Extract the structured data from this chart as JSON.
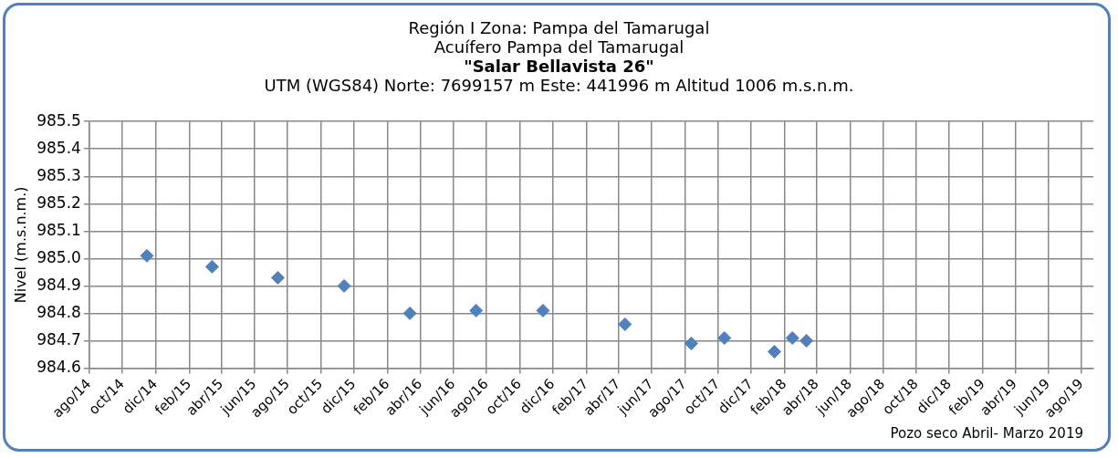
{
  "chart_data": {
    "type": "scatter",
    "title": "Región I Zona: Pampa del Tamarugal\nAcuífero Pampa del Tamarugal\n\"Salar Bellavista 26\"",
    "subtitle": "UTM (WGS84) Norte: 7699157 m Este: 441996 m Altitud 1006 m.s.n.m.",
    "ylabel": "Nivel (m.s.n.m.)",
    "x": [
      "2014-11-15",
      "2015-03-15",
      "2015-07-14",
      "2015-11-13",
      "2016-03-13",
      "2016-07-13",
      "2016-11-13",
      "2017-04-13",
      "2017-08-13",
      "2017-10-13",
      "2018-01-13",
      "2018-02-15",
      "2018-03-13"
    ],
    "series": [
      {
        "color": "#4f81bd",
        "values": [
          985.01,
          984.97,
          984.93,
          984.9,
          984.8,
          984.81,
          984.81,
          984.76,
          984.69,
          984.71,
          984.66,
          984.71,
          984.7
        ]
      }
    ],
    "marker": "diamond",
    "grid": true,
    "legend": false,
    "ylim": [
      984.6,
      985.5
    ],
    "yticks": [
      {
        "value": 984.6,
        "label": "984.6"
      },
      {
        "value": 984.7,
        "label": "984.7"
      },
      {
        "value": 984.8,
        "label": "984.8"
      },
      {
        "value": 984.9,
        "label": "984.9"
      },
      {
        "value": 985.0,
        "label": "985.0"
      },
      {
        "value": 985.1,
        "label": "985.1"
      },
      {
        "value": 985.2,
        "label": "985.2"
      },
      {
        "value": 985.3,
        "label": "985.3"
      },
      {
        "value": 985.4,
        "label": "985.4"
      },
      {
        "value": 985.5,
        "label": "985.5"
      }
    ],
    "xlim": [
      "2014-08-01",
      "2019-08-23"
    ],
    "xticks": [
      {
        "value": "2014-08-01",
        "label": "ago/14"
      },
      {
        "value": "2014-10-01",
        "label": "oct/14"
      },
      {
        "value": "2014-12-01",
        "label": "dic/14"
      },
      {
        "value": "2015-02-01",
        "label": "feb/15"
      },
      {
        "value": "2015-04-01",
        "label": "abr/15"
      },
      {
        "value": "2015-06-01",
        "label": "jun/15"
      },
      {
        "value": "2015-08-01",
        "label": "ago/15"
      },
      {
        "value": "2015-10-01",
        "label": "oct/15"
      },
      {
        "value": "2015-12-01",
        "label": "dic/15"
      },
      {
        "value": "2016-02-01",
        "label": "feb/16"
      },
      {
        "value": "2016-04-01",
        "label": "abr/16"
      },
      {
        "value": "2016-06-01",
        "label": "jun/16"
      },
      {
        "value": "2016-08-01",
        "label": "ago/16"
      },
      {
        "value": "2016-10-01",
        "label": "oct/16"
      },
      {
        "value": "2016-12-01",
        "label": "dic/16"
      },
      {
        "value": "2017-02-01",
        "label": "feb/17"
      },
      {
        "value": "2017-04-01",
        "label": "abr/17"
      },
      {
        "value": "2017-06-01",
        "label": "jun/17"
      },
      {
        "value": "2017-08-01",
        "label": "ago/17"
      },
      {
        "value": "2017-10-01",
        "label": "oct/17"
      },
      {
        "value": "2017-12-01",
        "label": "dic/17"
      },
      {
        "value": "2018-02-01",
        "label": "feb/18"
      },
      {
        "value": "2018-04-01",
        "label": "abr/18"
      },
      {
        "value": "2018-06-01",
        "label": "jun/18"
      },
      {
        "value": "2018-08-01",
        "label": "ago/18"
      },
      {
        "value": "2018-10-01",
        "label": "oct/18"
      },
      {
        "value": "2018-12-01",
        "label": "dic/18"
      },
      {
        "value": "2019-02-01",
        "label": "feb/19"
      },
      {
        "value": "2019-04-01",
        "label": "abr/19"
      },
      {
        "value": "2019-06-01",
        "label": "jun/19"
      },
      {
        "value": "2019-08-01",
        "label": "ago/19"
      }
    ],
    "annotations": [
      "Pozo seco  Abril- Marzo 2019"
    ]
  }
}
